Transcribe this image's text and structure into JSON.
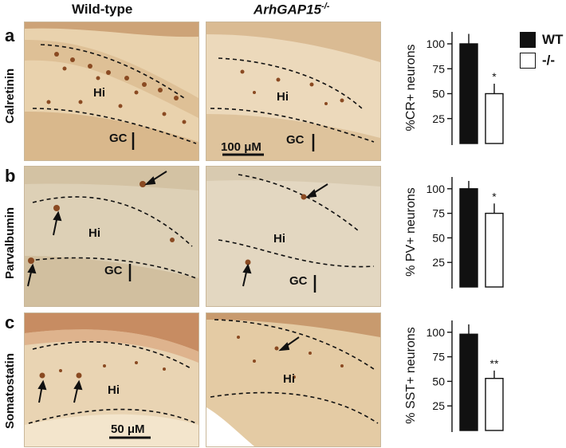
{
  "headers": {
    "wildtype": "Wild-type",
    "knockout_gene": "ArhGAP15",
    "knockout_sup": "-/-"
  },
  "rows": [
    {
      "letter": "a",
      "label": "Calretinin",
      "hi": "Hi",
      "gc": "GC",
      "scalebar": "100 μM"
    },
    {
      "letter": "b",
      "label": "Parvalbumin",
      "hi": "Hi",
      "gc": "GC"
    },
    {
      "letter": "c",
      "label": "Somatostatin",
      "hi": "Hi",
      "scalebar": "50 μM"
    }
  ],
  "legend": {
    "wt": "WT",
    "ko": "-/-",
    "wt_color": "#111111",
    "ko_color": "#ffffff"
  },
  "chart_data": [
    {
      "type": "bar",
      "categories": [
        "WT",
        "-/-"
      ],
      "values": [
        100,
        50
      ],
      "errors": [
        10,
        10
      ],
      "significance": [
        "",
        "*"
      ],
      "ylabel": "%CR+ neurons",
      "yticks": [
        25,
        50,
        75,
        100
      ],
      "ylim": [
        0,
        112
      ]
    },
    {
      "type": "bar",
      "categories": [
        "WT",
        "-/-"
      ],
      "values": [
        100,
        75
      ],
      "errors": [
        8,
        10
      ],
      "significance": [
        "",
        "*"
      ],
      "ylabel": "% PV+ neurons",
      "yticks": [
        25,
        50,
        75,
        100
      ],
      "ylim": [
        0,
        112
      ]
    },
    {
      "type": "bar",
      "categories": [
        "WT",
        "-/-"
      ],
      "values": [
        98,
        53
      ],
      "errors": [
        10,
        8
      ],
      "significance": [
        "",
        "**"
      ],
      "ylabel": "% SST+ neurons",
      "yticks": [
        25,
        50,
        75,
        100
      ],
      "ylim": [
        0,
        112
      ]
    }
  ]
}
